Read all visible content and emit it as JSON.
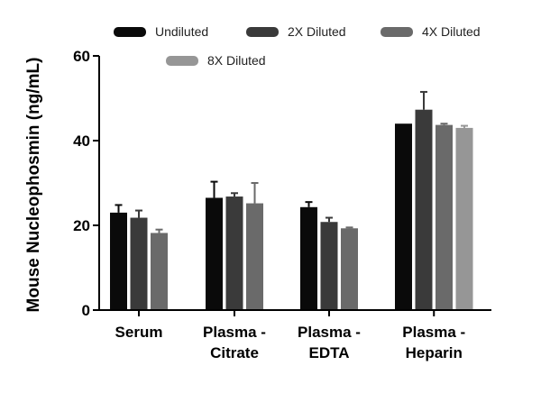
{
  "chart_data": {
    "type": "bar",
    "title": "",
    "xlabel": "",
    "ylabel": "Mouse Nucleophosmin (ng/mL)",
    "ylim": [
      0,
      60
    ],
    "yticks": [
      0,
      20,
      40,
      60
    ],
    "categories": [
      [
        "Serum"
      ],
      [
        "Plasma -",
        "Citrate"
      ],
      [
        "Plasma -",
        "EDTA"
      ],
      [
        "Plasma -",
        "Heparin"
      ]
    ],
    "series": [
      {
        "name": "Undiluted",
        "color": "#0a0a0a",
        "values": [
          23.0,
          26.5,
          24.3,
          44.0
        ],
        "errors": [
          1.8,
          3.8,
          1.2,
          0.0
        ]
      },
      {
        "name": "2X Diluted",
        "color": "#3a3a3a",
        "values": [
          21.8,
          26.8,
          20.8,
          47.3
        ],
        "errors": [
          1.7,
          0.8,
          1.0,
          4.2
        ]
      },
      {
        "name": "4X Diluted",
        "color": "#6a6a6a",
        "values": [
          18.2,
          25.2,
          19.3,
          43.7
        ],
        "errors": [
          0.8,
          4.8,
          0.2,
          0.3
        ]
      },
      {
        "name": "8X Diluted",
        "color": "#969696",
        "values": [
          null,
          null,
          null,
          43.0
        ],
        "errors": [
          null,
          null,
          null,
          0.5
        ]
      }
    ]
  }
}
